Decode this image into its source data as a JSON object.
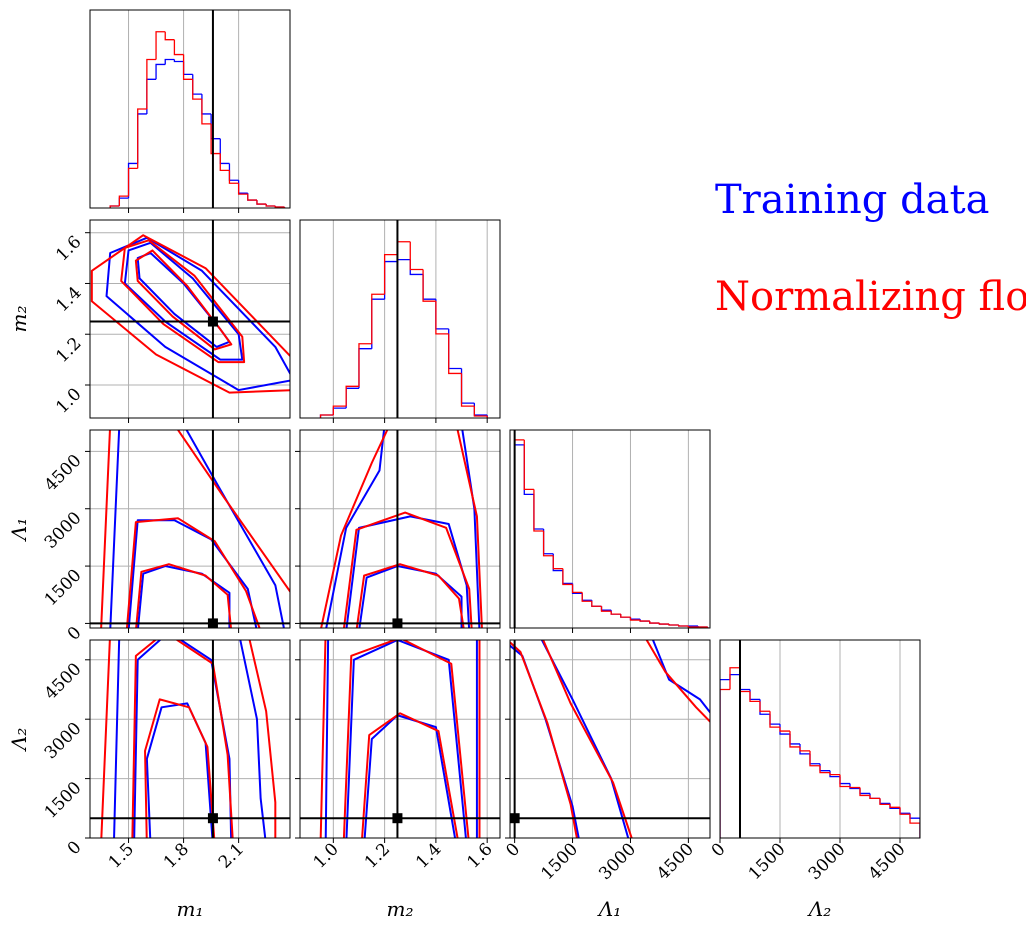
{
  "chart_data": {
    "type": "corner",
    "series": [
      {
        "name": "Training data",
        "color": "#0000ff"
      },
      {
        "name": "Normalizing flow",
        "color": "#ff0000"
      }
    ],
    "params": [
      {
        "label": "m₁",
        "lim": [
          1.29,
          2.38
        ],
        "ticks": [
          1.5,
          1.8,
          2.1
        ]
      },
      {
        "label": "m₂",
        "lim": [
          0.87,
          1.65
        ],
        "ticks": [
          {
            "value": 1,
            "label": "1.0"
          },
          1.2,
          1.4,
          1.6
        ]
      },
      {
        "label": "Λ₁",
        "lim": [
          -120,
          5060
        ],
        "ticks": [
          0,
          1500,
          3000,
          4500
        ]
      },
      {
        "label": "Λ₂",
        "lim": [
          0,
          5000
        ],
        "ticks": [
          0,
          1500,
          3000,
          4500
        ]
      }
    ],
    "truths": [
      1.96,
      1.25,
      0,
      500
    ],
    "grid": true,
    "histograms": [
      {
        "bins": [
          1.4,
          1.45,
          1.5,
          1.55,
          1.6,
          1.65,
          1.7,
          1.75,
          1.8,
          1.85,
          1.9,
          1.95,
          2.0,
          2.05,
          2.1,
          2.15,
          2.2,
          2.25,
          2.3,
          2.35
        ],
        "ylim": [
          0,
          200
        ],
        "counts": [
          [
            2,
            10,
            45,
            95,
            130,
            145,
            150,
            148,
            135,
            115,
            95,
            70,
            45,
            28,
            15,
            8,
            4,
            2,
            1
          ],
          [
            2,
            12,
            40,
            100,
            150,
            178,
            170,
            155,
            130,
            110,
            85,
            55,
            38,
            25,
            14,
            8,
            4,
            2,
            1
          ]
        ]
      },
      {
        "bins": [
          0.95,
          1.0,
          1.05,
          1.1,
          1.15,
          1.2,
          1.25,
          1.3,
          1.35,
          1.4,
          1.45,
          1.5,
          1.55,
          1.6
        ],
        "ylim": [
          0,
          200
        ],
        "counts": [
          [
            3,
            10,
            30,
            70,
            120,
            158,
            160,
            145,
            120,
            90,
            50,
            15,
            3
          ],
          [
            3,
            12,
            32,
            75,
            125,
            165,
            178,
            150,
            118,
            85,
            45,
            12,
            2
          ]
        ]
      },
      {
        "bins": [
          0,
          250,
          500,
          750,
          1000,
          1250,
          1500,
          1750,
          2000,
          2250,
          2500,
          2750,
          3000,
          3250,
          3500,
          3750,
          4000,
          4250,
          4500,
          4750,
          5000
        ],
        "ylim": [
          0,
          200
        ],
        "counts": [
          [
            185,
            135,
            100,
            75,
            58,
            45,
            35,
            28,
            22,
            18,
            14,
            11,
            9,
            7,
            5,
            4,
            3,
            2,
            2,
            1
          ],
          [
            190,
            140,
            98,
            73,
            60,
            44,
            36,
            27,
            22,
            17,
            14,
            11,
            8,
            7,
            5,
            4,
            3,
            2,
            1,
            1
          ]
        ]
      },
      {
        "bins": [
          0,
          250,
          500,
          750,
          1000,
          1250,
          1500,
          1750,
          2000,
          2250,
          2500,
          2750,
          3000,
          3250,
          3500,
          3750,
          4000,
          4250,
          4500,
          4750,
          5000
        ],
        "ylim": [
          0,
          200
        ],
        "counts": [
          [
            160,
            165,
            150,
            140,
            125,
            115,
            105,
            95,
            85,
            75,
            68,
            62,
            55,
            50,
            45,
            40,
            35,
            30,
            25,
            20
          ],
          [
            150,
            172,
            148,
            138,
            128,
            112,
            108,
            92,
            88,
            73,
            66,
            64,
            52,
            51,
            43,
            40,
            34,
            31,
            24,
            15
          ]
        ]
      }
    ],
    "contours": [
      [
        [
          {
            "x": [
              1.55,
              1.62,
              1.8,
              2.0,
              2.05,
              1.98,
              1.75,
              1.56
            ],
            "y": [
              1.5,
              1.52,
              1.4,
              1.22,
              1.17,
              1.15,
              1.28,
              1.42
            ]
          },
          {
            "x": [
              1.5,
              1.62,
              1.85,
              2.1,
              2.12,
              2.0,
              1.7,
              1.48
            ],
            "y": [
              1.53,
              1.56,
              1.42,
              1.2,
              1.1,
              1.1,
              1.25,
              1.4
            ]
          },
          {
            "x": [
              1.4,
              1.6,
              1.9,
              2.3,
              2.4,
              2.1,
              1.7,
              1.38
            ],
            "y": [
              1.52,
              1.58,
              1.45,
              1.15,
              1.02,
              0.98,
              1.15,
              1.35
            ]
          }
        ],
        [
          {
            "x": [
              1.54,
              1.63,
              1.82,
              2.01,
              2.06,
              1.97,
              1.74,
              1.55
            ],
            "y": [
              1.49,
              1.53,
              1.39,
              1.21,
              1.16,
              1.14,
              1.27,
              1.41
            ]
          },
          {
            "x": [
              1.48,
              1.61,
              1.86,
              2.12,
              2.13,
              1.99,
              1.69,
              1.46
            ],
            "y": [
              1.54,
              1.57,
              1.43,
              1.19,
              1.09,
              1.09,
              1.24,
              1.41
            ]
          },
          {
            "x": [
              1.3,
              1.58,
              1.92,
              2.4,
              2.4,
              2.05,
              1.65,
              1.3
            ],
            "y": [
              1.45,
              1.59,
              1.46,
              1.1,
              0.98,
              0.97,
              1.12,
              1.33
            ]
          }
        ]
      ],
      [
        [
          {
            "x": [
              1.55,
              1.58,
              1.7,
              1.9,
              2.05,
              2.05
            ],
            "y": [
              -200,
              1300,
              1500,
              1300,
              800,
              -200
            ]
          },
          {
            "x": [
              1.5,
              1.55,
              1.75,
              1.95,
              2.15,
              2.2
            ],
            "y": [
              -200,
              2700,
              2700,
              2200,
              900,
              -200
            ]
          },
          {
            "x": [
              1.4,
              1.45,
              1.8,
              2.0,
              2.3,
              2.35
            ],
            "y": [
              -200,
              5200,
              5200,
              3500,
              1000,
              -200
            ]
          }
        ],
        [
          {
            "x": [
              1.54,
              1.57,
              1.72,
              1.92,
              2.04,
              2.06
            ],
            "y": [
              -200,
              1350,
              1550,
              1250,
              750,
              -200
            ]
          },
          {
            "x": [
              1.49,
              1.54,
              1.77,
              1.97,
              2.14,
              2.22
            ],
            "y": [
              -200,
              2650,
              2750,
              2150,
              850,
              -200
            ]
          },
          {
            "x": [
              1.35,
              1.4,
              1.75,
              2.02,
              2.4,
              2.4
            ],
            "y": [
              -200,
              5200,
              5200,
              3300,
              700,
              -200
            ]
          }
        ]
      ],
      [
        [
          {
            "x": [
              1.1,
              1.13,
              1.25,
              1.4,
              1.5,
              1.5
            ],
            "y": [
              -200,
              1200,
              1500,
              1300,
              700,
              -200
            ]
          },
          {
            "x": [
              1.05,
              1.1,
              1.3,
              1.45,
              1.52,
              1.53
            ],
            "y": [
              -200,
              2500,
              2800,
              2600,
              1000,
              -200
            ]
          },
          {
            "x": [
              0.97,
              1.05,
              1.18,
              1.2,
              1.5,
              1.55,
              1.57
            ],
            "y": [
              -200,
              2500,
              4000,
              5200,
              5200,
              3000,
              -200
            ]
          }
        ],
        [
          {
            "x": [
              1.09,
              1.12,
              1.26,
              1.41,
              1.49,
              1.51
            ],
            "y": [
              -200,
              1250,
              1550,
              1250,
              650,
              -200
            ]
          },
          {
            "x": [
              1.04,
              1.09,
              1.28,
              1.44,
              1.53,
              1.54
            ],
            "y": [
              -200,
              2450,
              2900,
              2500,
              900,
              -200
            ]
          },
          {
            "x": [
              0.95,
              1.03,
              1.15,
              1.22,
              1.48,
              1.56,
              1.58
            ],
            "y": [
              -200,
              2300,
              4200,
              5200,
              5200,
              2800,
              -200
            ]
          }
        ]
      ],
      [
        [
          {
            "x": [
              1.62,
              1.6,
              1.68,
              1.82,
              1.92,
              1.96
            ],
            "y": [
              -200,
              2000,
              3300,
              3400,
              2400,
              -200
            ]
          },
          {
            "x": [
              1.53,
              1.55,
              1.72,
              1.95,
              2.05,
              2.06
            ],
            "y": [
              -200,
              4500,
              5200,
              4500,
              2000,
              -200
            ]
          },
          {
            "x": [
              1.42,
              1.45,
              2.1,
              2.2,
              2.22,
              2.25
            ],
            "y": [
              -200,
              5200,
              5200,
              3000,
              1000,
              -200
            ]
          }
        ],
        [
          {
            "x": [
              1.6,
              1.59,
              1.67,
              1.83,
              1.93,
              1.97
            ],
            "y": [
              -200,
              2200,
              3500,
              3300,
              2300,
              -200
            ]
          },
          {
            "x": [
              1.52,
              1.54,
              1.7,
              1.96,
              2.04,
              2.07
            ],
            "y": [
              -200,
              4600,
              5200,
              4400,
              2100,
              -200
            ]
          },
          {
            "x": [
              1.35,
              1.4,
              2.15,
              2.25,
              2.3,
              2.3
            ],
            "y": [
              -200,
              5200,
              5200,
              3200,
              900,
              -200
            ]
          }
        ]
      ],
      [
        [
          {
            "x": [
              1.12,
              1.15,
              1.25,
              1.4,
              1.48
            ],
            "y": [
              -200,
              2500,
              3100,
              2800,
              -200
            ]
          },
          {
            "x": [
              1.05,
              1.08,
              1.25,
              1.45,
              1.52
            ],
            "y": [
              -200,
              4500,
              5000,
              4500,
              -200
            ]
          },
          {
            "x": [
              0.97,
              0.98,
              1.56,
              1.56
            ],
            "y": [
              -200,
              5200,
              5200,
              -200
            ]
          }
        ],
        [
          {
            "x": [
              1.11,
              1.14,
              1.26,
              1.41,
              1.49
            ],
            "y": [
              -200,
              2600,
              3150,
              2700,
              -200
            ]
          },
          {
            "x": [
              1.04,
              1.07,
              1.26,
              1.46,
              1.53
            ],
            "y": [
              -200,
              4600,
              5050,
              4400,
              -200
            ]
          },
          {
            "x": [
              0.95,
              0.97,
              1.57,
              1.57
            ],
            "y": [
              -200,
              5200,
              5200,
              -200
            ]
          }
        ]
      ],
      [
        [
          {
            "x": [
              -300,
              -300,
              200,
              800,
              1500,
              1700
            ],
            "y": [
              -200,
              5000,
              4600,
              3000,
              800,
              -200
            ]
          },
          {
            "x": [
              -300,
              -300,
              600,
              1500,
              2500,
              3000
            ],
            "y": [
              -200,
              5200,
              5200,
              3500,
              1500,
              -200
            ]
          },
          {
            "x": [
              -300,
              -300,
              3500,
              4000,
              4800,
              5200,
              5200
            ],
            "y": [
              -200,
              5200,
              5200,
              4000,
              3500,
              3000,
              -200
            ]
          }
        ],
        [
          {
            "x": [
              -300,
              -300,
              150,
              850,
              1450,
              1650
            ],
            "y": [
              -200,
              5100,
              4700,
              2900,
              850,
              -200
            ]
          },
          {
            "x": [
              -300,
              -300,
              650,
              1450,
              2550,
              3100
            ],
            "y": [
              -200,
              5200,
              5200,
              3400,
              1400,
              -200
            ]
          },
          {
            "x": [
              -300,
              -300,
              3300,
              3900,
              4700,
              5200,
              5200
            ],
            "y": [
              -200,
              5200,
              5200,
              4200,
              3300,
              2800,
              -200
            ]
          }
        ]
      ]
    ]
  }
}
